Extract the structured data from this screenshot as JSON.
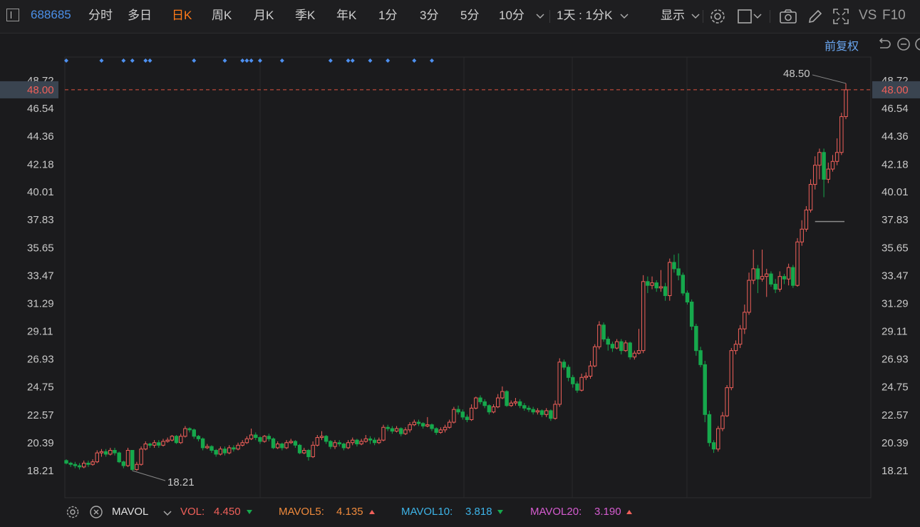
{
  "toolbar": {
    "symbol": "688685",
    "tabs": [
      {
        "label": "分时",
        "active": false
      },
      {
        "label": "多日",
        "active": false
      },
      {
        "label": "日K",
        "active": true
      },
      {
        "label": "周K",
        "active": false
      },
      {
        "label": "月K",
        "active": false
      },
      {
        "label": "季K",
        "active": false
      },
      {
        "label": "年K",
        "active": false
      },
      {
        "label": "1分",
        "active": false
      },
      {
        "label": "3分",
        "active": false
      },
      {
        "label": "5分",
        "active": false
      },
      {
        "label": "10分",
        "active": false
      }
    ],
    "period_select": "1天 : 1分K",
    "display_label": "显示",
    "vs_label": "VS",
    "f10_label": "F10"
  },
  "price_mode": "前复权",
  "chart_data": {
    "type": "candlestick",
    "y_ticks": [
      "48.72",
      "46.54",
      "44.36",
      "42.18",
      "40.01",
      "37.83",
      "35.65",
      "33.47",
      "31.29",
      "29.11",
      "26.93",
      "24.75",
      "22.57",
      "20.39",
      "18.21"
    ],
    "ylim": [
      16.8,
      50.2
    ],
    "current_price": "48.00",
    "high_label": "48.50",
    "low_label": "18.21",
    "candles": [
      [
        19.0,
        18.8,
        19.1,
        18.7
      ],
      [
        18.8,
        18.7,
        18.9,
        18.5
      ],
      [
        18.7,
        18.6,
        18.9,
        18.4
      ],
      [
        18.6,
        18.5,
        18.8,
        18.3
      ],
      [
        18.5,
        18.8,
        19.0,
        18.4
      ],
      [
        18.8,
        18.7,
        19.0,
        18.5
      ],
      [
        18.7,
        18.9,
        19.1,
        18.6
      ],
      [
        18.9,
        19.6,
        19.8,
        18.8
      ],
      [
        19.6,
        19.7,
        19.9,
        19.3
      ],
      [
        19.7,
        19.5,
        19.9,
        19.3
      ],
      [
        19.5,
        19.8,
        20.0,
        19.4
      ],
      [
        19.8,
        19.6,
        20.0,
        19.4
      ],
      [
        19.6,
        18.9,
        19.7,
        18.8
      ],
      [
        18.9,
        18.6,
        19.0,
        18.4
      ],
      [
        18.6,
        19.8,
        20.0,
        18.5
      ],
      [
        19.8,
        18.3,
        19.8,
        18.2
      ],
      [
        18.3,
        18.7,
        18.9,
        18.2
      ],
      [
        18.7,
        19.9,
        20.1,
        18.6
      ],
      [
        19.9,
        20.3,
        20.5,
        19.8
      ],
      [
        20.3,
        20.2,
        20.4,
        20.0
      ],
      [
        20.2,
        20.4,
        20.6,
        20.0
      ],
      [
        20.4,
        20.2,
        20.6,
        20.0
      ],
      [
        20.2,
        20.5,
        20.7,
        20.1
      ],
      [
        20.5,
        20.6,
        20.8,
        20.4
      ],
      [
        20.6,
        20.9,
        21.0,
        20.5
      ],
      [
        20.9,
        20.4,
        21.0,
        20.3
      ],
      [
        20.4,
        20.9,
        21.1,
        20.3
      ],
      [
        20.9,
        21.5,
        21.7,
        20.8
      ],
      [
        21.5,
        21.4,
        21.6,
        21.2
      ],
      [
        21.4,
        20.9,
        21.5,
        20.7
      ],
      [
        20.9,
        20.7,
        21.0,
        20.5
      ],
      [
        20.7,
        20.0,
        20.8,
        19.8
      ],
      [
        20.0,
        20.1,
        20.3,
        19.9
      ],
      [
        20.1,
        19.8,
        20.2,
        19.6
      ],
      [
        19.8,
        19.5,
        19.9,
        19.3
      ],
      [
        19.5,
        19.9,
        20.1,
        19.4
      ],
      [
        19.9,
        19.6,
        20.1,
        19.4
      ],
      [
        19.6,
        20.0,
        20.2,
        19.5
      ],
      [
        20.0,
        19.9,
        20.2,
        19.7
      ],
      [
        19.9,
        20.2,
        20.4,
        19.8
      ],
      [
        20.2,
        20.4,
        20.6,
        20.1
      ],
      [
        20.4,
        20.7,
        20.9,
        20.3
      ],
      [
        20.7,
        21.0,
        21.5,
        20.6
      ],
      [
        21.0,
        20.8,
        21.2,
        20.6
      ],
      [
        20.8,
        20.5,
        20.9,
        20.3
      ],
      [
        20.5,
        20.9,
        21.0,
        20.4
      ],
      [
        20.9,
        20.7,
        21.1,
        20.5
      ],
      [
        20.7,
        20.0,
        20.8,
        19.9
      ],
      [
        20.0,
        20.3,
        20.5,
        19.9
      ],
      [
        20.3,
        20.0,
        20.4,
        19.8
      ],
      [
        20.0,
        20.4,
        20.6,
        19.9
      ],
      [
        20.4,
        20.5,
        20.7,
        20.3
      ],
      [
        20.5,
        20.2,
        20.6,
        20.0
      ],
      [
        20.2,
        19.6,
        20.3,
        19.5
      ],
      [
        19.6,
        19.8,
        20.0,
        19.5
      ],
      [
        19.8,
        19.3,
        19.9,
        19.0
      ],
      [
        19.3,
        20.2,
        20.5,
        19.2
      ],
      [
        20.2,
        20.8,
        21.0,
        20.1
      ],
      [
        20.8,
        20.9,
        21.3,
        20.6
      ],
      [
        20.9,
        20.5,
        21.0,
        20.3
      ],
      [
        20.5,
        20.1,
        20.6,
        19.9
      ],
      [
        20.1,
        20.4,
        20.6,
        19.9
      ],
      [
        20.4,
        20.3,
        20.6,
        20.1
      ],
      [
        20.3,
        20.0,
        20.4,
        19.8
      ],
      [
        20.0,
        20.4,
        20.6,
        19.9
      ],
      [
        20.4,
        20.6,
        20.8,
        20.2
      ],
      [
        20.6,
        20.3,
        20.7,
        20.1
      ],
      [
        20.3,
        20.5,
        20.7,
        20.2
      ],
      [
        20.5,
        20.7,
        21.0,
        20.4
      ],
      [
        20.7,
        20.6,
        20.9,
        20.3
      ],
      [
        20.6,
        20.4,
        20.8,
        20.2
      ],
      [
        20.4,
        20.6,
        20.8,
        20.3
      ],
      [
        20.6,
        21.6,
        21.8,
        20.5
      ],
      [
        21.6,
        21.5,
        21.8,
        21.3
      ],
      [
        21.5,
        21.3,
        21.7,
        21.1
      ],
      [
        21.3,
        21.5,
        21.7,
        21.2
      ],
      [
        21.5,
        21.1,
        21.6,
        20.9
      ],
      [
        21.1,
        21.4,
        21.6,
        21.0
      ],
      [
        21.4,
        21.8,
        22.0,
        21.2
      ],
      [
        21.8,
        22.0,
        22.2,
        21.7
      ],
      [
        22.0,
        21.9,
        22.2,
        21.7
      ],
      [
        21.9,
        21.7,
        22.0,
        21.5
      ],
      [
        21.7,
        21.8,
        22.4,
        21.6
      ],
      [
        21.8,
        21.5,
        21.9,
        21.3
      ],
      [
        21.5,
        21.2,
        21.6,
        21.0
      ],
      [
        21.2,
        21.4,
        21.6,
        21.1
      ],
      [
        21.4,
        21.6,
        21.8,
        21.2
      ],
      [
        21.6,
        22.0,
        22.2,
        21.5
      ],
      [
        22.0,
        23.0,
        23.2,
        21.9
      ],
      [
        23.0,
        22.8,
        23.3,
        22.6
      ],
      [
        22.8,
        22.4,
        23.0,
        22.2
      ],
      [
        22.4,
        22.2,
        22.6,
        22.0
      ],
      [
        22.2,
        23.1,
        23.4,
        22.1
      ],
      [
        23.1,
        23.9,
        24.0,
        23.0
      ],
      [
        23.9,
        23.6,
        24.1,
        23.4
      ],
      [
        23.6,
        23.3,
        23.8,
        23.1
      ],
      [
        23.3,
        22.8,
        23.4,
        22.6
      ],
      [
        22.8,
        23.2,
        23.4,
        22.7
      ],
      [
        23.2,
        23.9,
        24.2,
        23.1
      ],
      [
        23.9,
        24.4,
        24.8,
        23.8
      ],
      [
        24.4,
        23.3,
        24.5,
        23.2
      ],
      [
        23.3,
        23.5,
        23.7,
        23.2
      ],
      [
        23.5,
        23.6,
        23.9,
        23.3
      ],
      [
        23.6,
        23.3,
        23.8,
        23.1
      ],
      [
        23.3,
        23.1,
        23.5,
        22.9
      ],
      [
        23.1,
        23.0,
        23.3,
        22.8
      ],
      [
        23.0,
        22.8,
        23.2,
        22.6
      ],
      [
        22.8,
        22.9,
        23.1,
        22.6
      ],
      [
        22.9,
        22.6,
        23.0,
        22.4
      ],
      [
        22.6,
        22.9,
        23.1,
        22.4
      ],
      [
        22.9,
        22.3,
        23.0,
        22.1
      ],
      [
        22.3,
        23.4,
        23.7,
        22.2
      ],
      [
        23.4,
        26.7,
        27.0,
        23.2
      ],
      [
        26.7,
        26.3,
        26.9,
        26.1
      ],
      [
        26.3,
        25.5,
        26.5,
        25.2
      ],
      [
        25.5,
        25.0,
        25.7,
        24.7
      ],
      [
        25.0,
        24.5,
        25.2,
        24.3
      ],
      [
        24.5,
        25.5,
        25.8,
        24.4
      ],
      [
        25.5,
        25.6,
        25.9,
        25.3
      ],
      [
        25.6,
        26.4,
        26.8,
        25.4
      ],
      [
        26.4,
        27.9,
        28.1,
        26.3
      ],
      [
        27.9,
        29.6,
        29.9,
        27.7
      ],
      [
        29.6,
        28.5,
        29.8,
        28.3
      ],
      [
        28.5,
        28.1,
        28.7,
        27.6
      ],
      [
        28.1,
        27.8,
        28.3,
        27.5
      ],
      [
        27.8,
        28.3,
        28.5,
        27.7
      ],
      [
        28.3,
        27.6,
        28.5,
        27.3
      ],
      [
        27.6,
        28.2,
        28.4,
        27.5
      ],
      [
        28.2,
        27.1,
        28.3,
        26.9
      ],
      [
        27.1,
        27.4,
        27.6,
        26.9
      ],
      [
        27.4,
        27.6,
        29.3,
        27.3
      ],
      [
        27.6,
        33.0,
        33.5,
        27.4
      ],
      [
        33.0,
        32.7,
        33.4,
        32.1
      ],
      [
        32.7,
        32.9,
        33.4,
        32.4
      ],
      [
        32.9,
        32.5,
        33.1,
        32.2
      ],
      [
        32.5,
        32.6,
        33.9,
        32.2
      ],
      [
        32.6,
        31.9,
        32.9,
        31.5
      ],
      [
        31.9,
        34.5,
        34.8,
        31.5
      ],
      [
        34.5,
        34.0,
        35.1,
        33.7
      ],
      [
        34.0,
        33.5,
        35.2,
        33.1
      ],
      [
        33.5,
        32.1,
        33.7,
        31.9
      ],
      [
        32.1,
        31.4,
        32.3,
        31.2
      ],
      [
        31.4,
        29.5,
        31.6,
        29.2
      ],
      [
        29.5,
        27.6,
        29.7,
        27.2
      ],
      [
        27.6,
        26.5,
        27.9,
        26.3
      ],
      [
        26.5,
        22.6,
        26.8,
        22.0
      ],
      [
        22.6,
        20.4,
        22.9,
        20.1
      ],
      [
        20.4,
        19.9,
        20.6,
        19.6
      ],
      [
        19.9,
        21.5,
        21.7,
        19.7
      ],
      [
        21.5,
        22.5,
        22.8,
        21.3
      ],
      [
        22.5,
        24.7,
        24.9,
        22.4
      ],
      [
        24.7,
        27.6,
        27.8,
        24.5
      ],
      [
        27.6,
        28.1,
        28.4,
        27.3
      ],
      [
        28.1,
        29.3,
        29.6,
        27.8
      ],
      [
        29.3,
        30.6,
        31.2,
        28.9
      ],
      [
        30.6,
        33.1,
        33.7,
        30.4
      ],
      [
        33.1,
        34.0,
        35.5,
        32.8
      ],
      [
        34.0,
        33.2,
        34.3,
        32.1
      ],
      [
        33.2,
        33.4,
        35.5,
        33.0
      ],
      [
        33.4,
        33.6,
        34.0,
        31.8
      ],
      [
        33.6,
        32.8,
        33.8,
        32.6
      ],
      [
        32.8,
        32.4,
        33.2,
        32.1
      ],
      [
        32.4,
        33.4,
        33.8,
        32.2
      ],
      [
        33.4,
        33.2,
        33.6,
        32.8
      ],
      [
        33.2,
        34.1,
        34.4,
        32.7
      ],
      [
        34.1,
        32.7,
        34.3,
        32.5
      ],
      [
        32.7,
        36.1,
        36.4,
        32.6
      ],
      [
        36.1,
        37.1,
        37.8,
        35.8
      ],
      [
        37.1,
        38.6,
        38.9,
        36.9
      ],
      [
        38.6,
        40.6,
        41.0,
        38.4
      ],
      [
        40.6,
        42.1,
        42.8,
        40.2
      ],
      [
        42.1,
        43.1,
        43.4,
        41.0
      ],
      [
        43.1,
        41.0,
        43.4,
        39.6
      ],
      [
        41.0,
        41.8,
        42.3,
        40.7
      ],
      [
        41.8,
        42.4,
        42.9,
        41.6
      ],
      [
        42.4,
        43.1,
        44.2,
        42.1
      ],
      [
        43.1,
        45.9,
        46.2,
        42.9
      ],
      [
        45.9,
        48.0,
        48.5,
        45.7
      ]
    ]
  },
  "markers": {
    "diamond_color": "#4e90f0",
    "candle_indices": [
      0,
      8,
      13,
      15,
      18,
      19,
      29,
      36,
      40,
      41,
      42,
      44,
      49,
      60,
      64,
      65,
      69,
      73,
      79,
      83
    ]
  },
  "indicator_bar": {
    "name": "MAVOL",
    "items": [
      {
        "label": "VOL:",
        "value": "4.450",
        "dir": "down",
        "label_color": "#f0605a",
        "value_color": "#f0605a"
      },
      {
        "label": "MAVOL5:",
        "value": "4.135",
        "dir": "up",
        "label_color": "#f08a3c",
        "value_color": "#f08a3c"
      },
      {
        "label": "MAVOL10:",
        "value": "3.818",
        "dir": "down",
        "label_color": "#3db4e8",
        "value_color": "#3db4e8"
      },
      {
        "label": "MAVOL20:",
        "value": "3.190",
        "dir": "up",
        "label_color": "#d55cd0",
        "value_color": "#d55cd0"
      }
    ]
  },
  "colors": {
    "up": "#f0605a",
    "down": "#16a84c",
    "accent": "#ff7a18",
    "price_line": "#e0533f",
    "grid": "#2a2a2c"
  }
}
